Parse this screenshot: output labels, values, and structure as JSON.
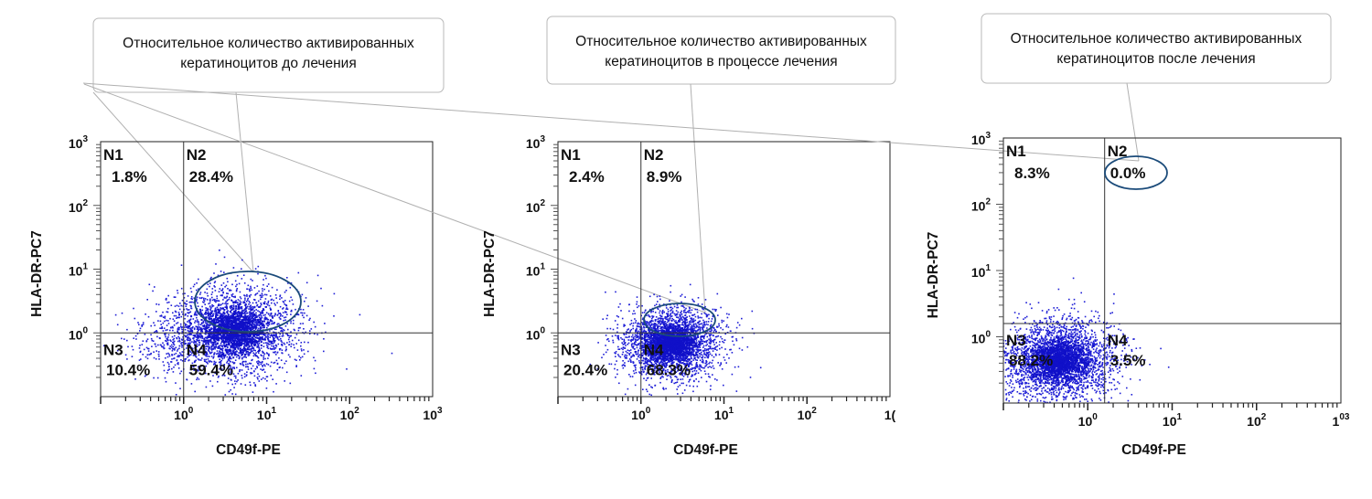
{
  "chart_data": [
    {
      "type": "scatter",
      "callout": [
        "Относительное количество активированных",
        "кератиноцитов до лечения"
      ],
      "xlabel": "CD49f-PE",
      "ylabel": "HLA-DR-PC7",
      "x_ticks": [
        {
          "base": "10",
          "exp": "0"
        },
        {
          "base": "10",
          "exp": "1"
        },
        {
          "base": "10",
          "exp": "2"
        },
        {
          "base": "10",
          "exp": "3"
        }
      ],
      "y_ticks": [
        {
          "base": "10",
          "exp": "0"
        },
        {
          "base": "10",
          "exp": "1"
        },
        {
          "base": "10",
          "exp": "2"
        },
        {
          "base": "10",
          "exp": "3"
        }
      ],
      "xlim_log10": [
        -1,
        3
      ],
      "ylim_log10": [
        -1,
        3
      ],
      "x_scale": "log",
      "y_scale": "log",
      "gate_log10": {
        "x": 0.0,
        "y": 0.0
      },
      "quadrants": [
        {
          "name": "N1",
          "value": "1.8%"
        },
        {
          "name": "N2",
          "value": "28.4%"
        },
        {
          "name": "N3",
          "value": "10.4%"
        },
        {
          "name": "N4",
          "value": "59.4%"
        }
      ],
      "cloud_center_log10": {
        "x": 0.6,
        "y": 0.05
      },
      "cloud_spread_log10": {
        "x": 0.4,
        "y": 0.35
      },
      "highlight_ellipse": true,
      "highlight_ellipse_center_log10": {
        "x": 0.8,
        "y": 0.4
      },
      "point_color": "#1f1fd6"
    },
    {
      "type": "scatter",
      "callout": [
        "Относительное количество активированных",
        "кератиноцитов в процессе лечения"
      ],
      "xlabel": "CD49f-PE",
      "ylabel": "HLA-DR-PC7",
      "x_ticks": [
        {
          "base": "10",
          "exp": "0"
        },
        {
          "base": "10",
          "exp": "1"
        },
        {
          "base": "10",
          "exp": "2"
        },
        {
          "base": "1(",
          "exp": ""
        }
      ],
      "y_ticks": [
        {
          "base": "10",
          "exp": "0"
        },
        {
          "base": "10",
          "exp": "1"
        },
        {
          "base": "10",
          "exp": "2"
        },
        {
          "base": "10",
          "exp": "3"
        }
      ],
      "xlim_log10": [
        -1,
        3
      ],
      "ylim_log10": [
        -1,
        3
      ],
      "x_scale": "log",
      "y_scale": "log",
      "gate_log10": {
        "x": 0.0,
        "y": 0.0
      },
      "quadrants": [
        {
          "name": "N1",
          "value": "2.4%"
        },
        {
          "name": "N2",
          "value": "8.9%"
        },
        {
          "name": "N3",
          "value": "20.4%"
        },
        {
          "name": "N4",
          "value": "68.3%"
        }
      ],
      "cloud_center_log10": {
        "x": 0.35,
        "y": -0.15
      },
      "cloud_spread_log10": {
        "x": 0.3,
        "y": 0.28
      },
      "highlight_ellipse": true,
      "highlight_ellipse_center_log10": {
        "x": 0.55,
        "y": 0.25
      },
      "point_color": "#1f1fd6"
    },
    {
      "type": "scatter",
      "callout": [
        "Относительное количество активированных",
        "кератиноцитов после лечения"
      ],
      "xlabel": "CD49f-PE",
      "ylabel": "HLA-DR-PC7",
      "x_ticks": [
        {
          "base": "10",
          "exp": "0"
        },
        {
          "base": "10",
          "exp": "1"
        },
        {
          "base": "10",
          "exp": "2"
        },
        {
          "base": "1",
          "exp": "03"
        }
      ],
      "y_ticks": [
        {
          "base": "10",
          "exp": "0"
        },
        {
          "base": "10",
          "exp": "1"
        },
        {
          "base": "10",
          "exp": "2"
        },
        {
          "base": "10",
          "exp": "3"
        }
      ],
      "xlim_log10": [
        -1,
        3
      ],
      "ylim_log10": [
        -1,
        3
      ],
      "x_scale": "log",
      "y_scale": "log",
      "gate_log10": {
        "x": 0.2,
        "y": 0.2
      },
      "quadrants": [
        {
          "name": "N1",
          "value": "8.3%"
        },
        {
          "name": "N2",
          "value": "0.0%"
        },
        {
          "name": "N3",
          "value": "88.2%"
        },
        {
          "name": "N4",
          "value": "3.5%"
        }
      ],
      "cloud_center_log10": {
        "x": -0.35,
        "y": -0.35
      },
      "cloud_spread_log10": {
        "x": 0.35,
        "y": 0.32
      },
      "highlight_ellipse": true,
      "highlight_ellipse_center_log10": {
        "x": 0.6,
        "y": 2.45
      },
      "point_color": "#1f1fd6"
    }
  ]
}
